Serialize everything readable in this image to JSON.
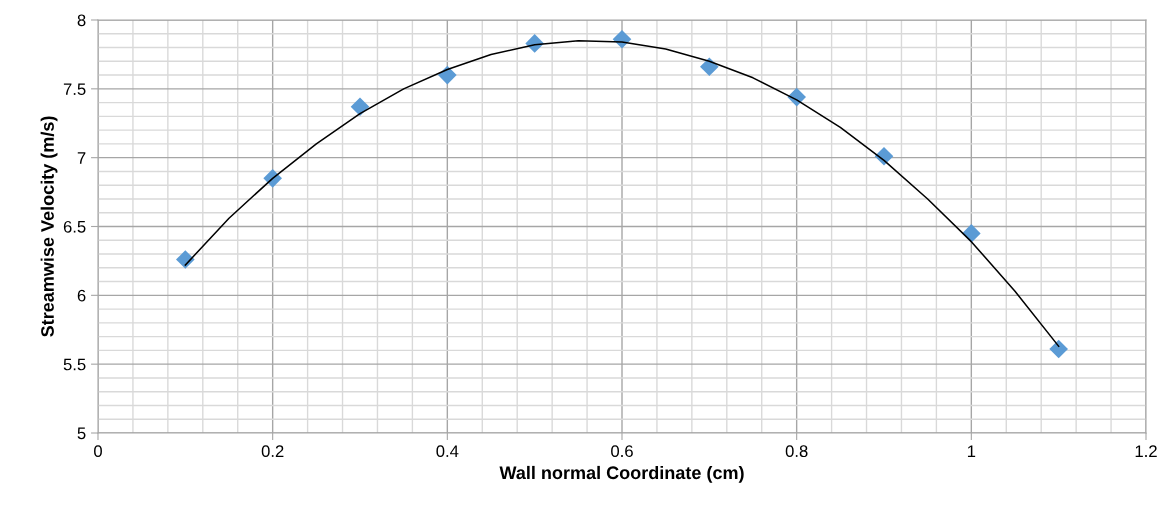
{
  "chart_data": {
    "type": "scatter",
    "xlabel": "Wall normal Coordinate (cm)",
    "ylabel": "Streamwise Velocity (m/s)",
    "xlim": [
      0,
      1.2
    ],
    "xticks": [
      0,
      0.2,
      0.4,
      0.6,
      0.8,
      1,
      1.2
    ],
    "ylim": [
      5,
      8
    ],
    "yticks": [
      5,
      5.5,
      6,
      6.5,
      7,
      7.5,
      8
    ],
    "grid": true,
    "series": [
      {
        "color": "#5b9bd5",
        "marker": "diamond",
        "x": [
          0.1,
          0.2,
          0.3,
          0.4,
          0.5,
          0.6,
          0.7,
          0.8,
          0.9,
          1.0,
          1.1
        ],
        "values": [
          6.26,
          6.85,
          7.37,
          7.6,
          7.83,
          7.86,
          7.66,
          7.44,
          7.01,
          6.45,
          5.61
        ]
      },
      {
        "type": "line",
        "color": "#000000",
        "marker": "none",
        "line_style": "solid",
        "x": [
          0.1,
          0.15,
          0.2,
          0.25,
          0.3,
          0.35,
          0.4,
          0.45,
          0.5,
          0.55,
          0.6,
          0.65,
          0.7,
          0.75,
          0.8,
          0.85,
          0.9,
          0.95,
          1.0,
          1.05,
          1.1
        ],
        "values": [
          6.22,
          6.56,
          6.85,
          7.1,
          7.32,
          7.5,
          7.64,
          7.75,
          7.82,
          7.85,
          7.84,
          7.79,
          7.7,
          7.58,
          7.42,
          7.22,
          6.98,
          6.7,
          6.39,
          6.03,
          5.63
        ]
      }
    ]
  }
}
